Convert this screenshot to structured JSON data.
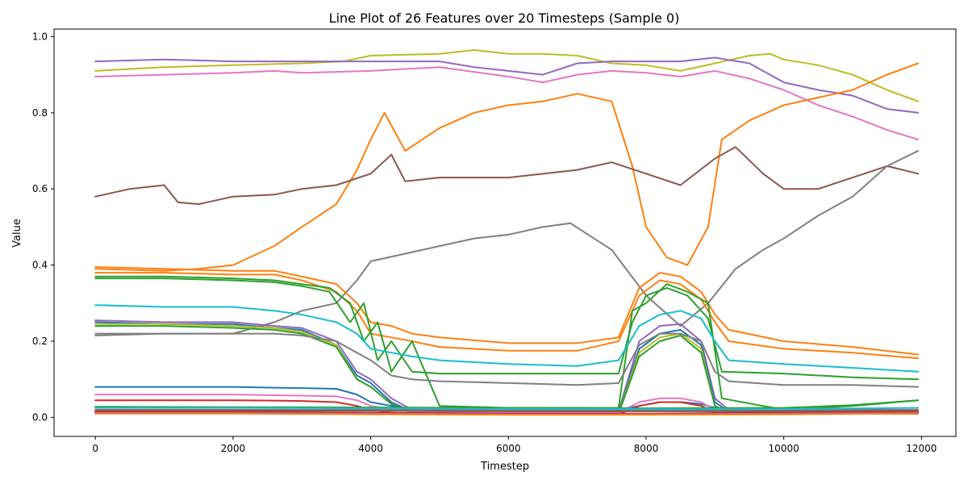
{
  "chart_data": {
    "type": "line",
    "title": "Line Plot of 26 Features over 20 Timesteps (Sample 0)",
    "xlabel": "Timestep",
    "ylabel": "Value",
    "xlim": [
      -600,
      12500
    ],
    "ylim": [
      -0.05,
      1.02
    ],
    "xticks": [
      0,
      2000,
      4000,
      6000,
      8000,
      10000,
      12000
    ],
    "xtick_labels": [
      "0",
      "2000",
      "4000",
      "6000",
      "8000",
      "10000",
      "12000"
    ],
    "yticks": [
      0.0,
      0.2,
      0.4,
      0.6,
      0.8,
      1.0
    ],
    "ytick_labels": [
      "0.0",
      "0.2",
      "0.4",
      "0.6",
      "0.8",
      "1.0"
    ],
    "grid": false,
    "legend": "none",
    "series": [
      {
        "color": "#bcbd22",
        "x": [
          0,
          1000,
          2000,
          3000,
          3600,
          4000,
          5000,
          5500,
          6000,
          6500,
          7000,
          7500,
          8000,
          8500,
          9000,
          9500,
          9800,
          10000,
          10500,
          11000,
          11500,
          11950
        ],
        "y": [
          0.91,
          0.92,
          0.925,
          0.93,
          0.935,
          0.95,
          0.955,
          0.965,
          0.955,
          0.955,
          0.95,
          0.93,
          0.925,
          0.91,
          0.93,
          0.95,
          0.955,
          0.94,
          0.925,
          0.9,
          0.86,
          0.83
        ]
      },
      {
        "color": "#9467bd",
        "x": [
          0,
          1000,
          2000,
          3000,
          4000,
          5000,
          5500,
          6000,
          6500,
          7000,
          7500,
          8000,
          8500,
          9000,
          9500,
          10000,
          10500,
          11000,
          11500,
          11950
        ],
        "y": [
          0.935,
          0.94,
          0.935,
          0.935,
          0.935,
          0.935,
          0.92,
          0.91,
          0.9,
          0.93,
          0.935,
          0.935,
          0.935,
          0.945,
          0.93,
          0.88,
          0.86,
          0.845,
          0.81,
          0.8
        ]
      },
      {
        "color": "#e377c2",
        "x": [
          0,
          1000,
          2000,
          2600,
          3000,
          4000,
          5000,
          6000,
          6500,
          7000,
          7500,
          8000,
          8500,
          9000,
          9500,
          10000,
          10500,
          11000,
          11500,
          11950
        ],
        "y": [
          0.895,
          0.9,
          0.905,
          0.91,
          0.905,
          0.91,
          0.92,
          0.895,
          0.88,
          0.9,
          0.91,
          0.905,
          0.895,
          0.91,
          0.89,
          0.86,
          0.82,
          0.79,
          0.755,
          0.73
        ]
      },
      {
        "color": "#ff7f0e",
        "x": [
          0,
          1000,
          1500,
          2000,
          2600,
          3000,
          3500,
          3800,
          4000,
          4200,
          4500,
          5000,
          5500,
          6000,
          6500,
          7000,
          7500,
          7800,
          8000,
          8300,
          8600,
          8900,
          9100,
          9500,
          10000,
          10500,
          11000,
          11500,
          11950
        ],
        "y": [
          0.39,
          0.385,
          0.39,
          0.4,
          0.45,
          0.5,
          0.56,
          0.65,
          0.73,
          0.8,
          0.7,
          0.76,
          0.8,
          0.82,
          0.83,
          0.85,
          0.83,
          0.66,
          0.5,
          0.42,
          0.4,
          0.5,
          0.73,
          0.78,
          0.82,
          0.84,
          0.86,
          0.9,
          0.93
        ]
      },
      {
        "color": "#8c564b",
        "x": [
          0,
          500,
          1000,
          1200,
          1500,
          2000,
          2600,
          3000,
          3500,
          4000,
          4300,
          4500,
          5000,
          6000,
          7000,
          7500,
          8000,
          8500,
          9000,
          9300,
          9700,
          10000,
          10500,
          11000,
          11500,
          11950
        ],
        "y": [
          0.58,
          0.6,
          0.61,
          0.565,
          0.56,
          0.58,
          0.585,
          0.6,
          0.61,
          0.64,
          0.69,
          0.62,
          0.63,
          0.63,
          0.65,
          0.67,
          0.64,
          0.61,
          0.68,
          0.71,
          0.64,
          0.6,
          0.6,
          0.63,
          0.66,
          0.64
        ]
      },
      {
        "color": "#7f7f7f",
        "x": [
          0,
          1000,
          2000,
          2600,
          3000,
          3500,
          3800,
          4000,
          4500,
          5000,
          5500,
          6000,
          6500,
          6900,
          7500,
          8000,
          8500,
          8900,
          9300,
          9700,
          10000,
          10500,
          11000,
          11500,
          11950
        ],
        "y": [
          0.22,
          0.22,
          0.22,
          0.25,
          0.28,
          0.3,
          0.36,
          0.41,
          0.43,
          0.45,
          0.47,
          0.48,
          0.5,
          0.51,
          0.44,
          0.32,
          0.24,
          0.3,
          0.39,
          0.44,
          0.47,
          0.53,
          0.58,
          0.66,
          0.7
        ]
      },
      {
        "color": "#ff7f0e",
        "x": [
          0,
          1000,
          2000,
          2600,
          3000,
          3500,
          3800,
          4000,
          4300,
          4600,
          5000,
          6000,
          7000,
          7600,
          7900,
          8200,
          8500,
          8800,
          9000,
          9200,
          10000,
          11000,
          11950
        ],
        "y": [
          0.395,
          0.39,
          0.385,
          0.385,
          0.37,
          0.35,
          0.3,
          0.25,
          0.24,
          0.22,
          0.21,
          0.195,
          0.195,
          0.21,
          0.34,
          0.38,
          0.37,
          0.33,
          0.27,
          0.23,
          0.2,
          0.185,
          0.165
        ]
      },
      {
        "color": "#ff7f0e",
        "x": [
          0,
          1000,
          2000,
          2600,
          3000,
          3500,
          3800,
          4000,
          4300,
          4600,
          5000,
          6000,
          7000,
          7600,
          7900,
          8200,
          8500,
          8800,
          9000,
          9200,
          10000,
          11000,
          11950
        ],
        "y": [
          0.38,
          0.38,
          0.375,
          0.375,
          0.36,
          0.33,
          0.28,
          0.22,
          0.21,
          0.2,
          0.185,
          0.175,
          0.175,
          0.2,
          0.32,
          0.36,
          0.35,
          0.31,
          0.25,
          0.2,
          0.18,
          0.17,
          0.155
        ]
      },
      {
        "color": "#2ca02c",
        "x": [
          0,
          1000,
          2000,
          2600,
          3000,
          3400,
          3700,
          3900,
          4100,
          4300,
          4600,
          5000,
          6000,
          7000,
          7600,
          7800,
          8000,
          8300,
          8600,
          8900,
          9100,
          10000,
          11000,
          11950
        ],
        "y": [
          0.37,
          0.37,
          0.365,
          0.36,
          0.35,
          0.34,
          0.3,
          0.2,
          0.25,
          0.12,
          0.2,
          0.03,
          0.025,
          0.025,
          0.025,
          0.28,
          0.3,
          0.35,
          0.33,
          0.3,
          0.05,
          0.02,
          0.03,
          0.045
        ]
      },
      {
        "color": "#2ca02c",
        "x": [
          0,
          1000,
          2000,
          2600,
          3000,
          3400,
          3700,
          3900,
          4100,
          4300,
          4600,
          5000,
          6000,
          7000,
          7600,
          7800,
          8000,
          8300,
          8600,
          8900,
          9100,
          10000,
          11000,
          11950
        ],
        "y": [
          0.365,
          0.365,
          0.36,
          0.355,
          0.345,
          0.33,
          0.25,
          0.3,
          0.15,
          0.2,
          0.12,
          0.115,
          0.115,
          0.115,
          0.115,
          0.25,
          0.32,
          0.34,
          0.32,
          0.26,
          0.12,
          0.115,
          0.105,
          0.1
        ]
      },
      {
        "color": "#17becf",
        "x": [
          0,
          1000,
          2000,
          2600,
          3000,
          3500,
          3800,
          4000,
          4300,
          4600,
          5000,
          6000,
          7000,
          7600,
          7900,
          8200,
          8500,
          8800,
          9000,
          9200,
          10000,
          11000,
          11950
        ],
        "y": [
          0.295,
          0.29,
          0.29,
          0.28,
          0.27,
          0.25,
          0.22,
          0.18,
          0.17,
          0.16,
          0.15,
          0.14,
          0.135,
          0.15,
          0.24,
          0.27,
          0.28,
          0.26,
          0.2,
          0.15,
          0.14,
          0.13,
          0.12
        ]
      },
      {
        "color": "#9467bd",
        "x": [
          0,
          1000,
          2000,
          2600,
          3000,
          3500,
          3800,
          4000,
          4300,
          4600,
          5000,
          6000,
          7000,
          7600,
          7900,
          8200,
          8500,
          8800,
          9000,
          9200,
          10000,
          11000,
          11950
        ],
        "y": [
          0.255,
          0.25,
          0.25,
          0.24,
          0.235,
          0.2,
          0.12,
          0.1,
          0.05,
          0.02,
          0.015,
          0.01,
          0.01,
          0.015,
          0.2,
          0.24,
          0.245,
          0.2,
          0.05,
          0.02,
          0.015,
          0.012,
          0.012
        ]
      },
      {
        "color": "#1f77b4",
        "x": [
          0,
          1000,
          2000,
          2600,
          3000,
          3500,
          3800,
          4000,
          4300,
          4600,
          5000,
          6000,
          7000,
          7600,
          7900,
          8200,
          8500,
          8800,
          9000,
          9200,
          10000,
          11000,
          11950
        ],
        "y": [
          0.25,
          0.245,
          0.245,
          0.235,
          0.23,
          0.19,
          0.11,
          0.09,
          0.04,
          0.015,
          0.012,
          0.01,
          0.01,
          0.012,
          0.18,
          0.22,
          0.23,
          0.19,
          0.04,
          0.015,
          0.012,
          0.01,
          0.01
        ]
      },
      {
        "color": "#bcbd22",
        "x": [
          0,
          1000,
          2000,
          2600,
          3000,
          3500,
          3800,
          4000,
          4300,
          4600,
          5000,
          6000,
          7000,
          7600,
          7900,
          8200,
          8500,
          8800,
          9000,
          9200,
          10000,
          11000,
          11950
        ],
        "y": [
          0.245,
          0.245,
          0.24,
          0.235,
          0.225,
          0.19,
          0.1,
          0.08,
          0.035,
          0.012,
          0.01,
          0.008,
          0.008,
          0.01,
          0.17,
          0.21,
          0.22,
          0.18,
          0.03,
          0.012,
          0.01,
          0.01,
          0.01
        ]
      },
      {
        "color": "#2ca02c",
        "x": [
          0,
          1000,
          2000,
          2600,
          3000,
          3500,
          3800,
          4000,
          4300,
          4600,
          5000,
          6000,
          7000,
          7600,
          7900,
          8200,
          8500,
          8800,
          9000,
          9200,
          10000,
          11000,
          11950
        ],
        "y": [
          0.24,
          0.24,
          0.235,
          0.23,
          0.22,
          0.185,
          0.1,
          0.08,
          0.035,
          0.012,
          0.01,
          0.008,
          0.008,
          0.01,
          0.16,
          0.2,
          0.215,
          0.17,
          0.03,
          0.012,
          0.01,
          0.01,
          0.01
        ]
      },
      {
        "color": "#7f7f7f",
        "x": [
          0,
          1000,
          2000,
          2600,
          3000,
          3500,
          3800,
          4000,
          4300,
          4600,
          5000,
          6000,
          7000,
          7600,
          7900,
          8200,
          8500,
          8800,
          9000,
          9200,
          10000,
          11000,
          11950
        ],
        "y": [
          0.215,
          0.22,
          0.22,
          0.22,
          0.215,
          0.2,
          0.17,
          0.15,
          0.11,
          0.1,
          0.095,
          0.09,
          0.085,
          0.09,
          0.19,
          0.22,
          0.22,
          0.2,
          0.12,
          0.095,
          0.085,
          0.085,
          0.08
        ]
      },
      {
        "color": "#1f77b4",
        "x": [
          0,
          1000,
          2000,
          2600,
          3000,
          3500,
          3800,
          4000,
          4300,
          4600,
          5000,
          6000,
          7000,
          7600,
          7900,
          8200,
          8500,
          8800,
          9000,
          9200,
          10000,
          11000,
          11950
        ],
        "y": [
          0.08,
          0.08,
          0.08,
          0.078,
          0.077,
          0.075,
          0.06,
          0.04,
          0.03,
          0.02,
          0.02,
          0.02,
          0.02,
          0.02,
          0.03,
          0.04,
          0.04,
          0.035,
          0.025,
          0.02,
          0.02,
          0.02,
          0.02
        ]
      },
      {
        "color": "#e377c2",
        "x": [
          0,
          1000,
          2000,
          2600,
          3000,
          3500,
          3800,
          4000,
          4300,
          4600,
          5000,
          6000,
          7000,
          7600,
          7900,
          8200,
          8500,
          8800,
          9000,
          9200,
          10000,
          11000,
          11950
        ],
        "y": [
          0.06,
          0.06,
          0.06,
          0.058,
          0.057,
          0.055,
          0.045,
          0.03,
          0.02,
          0.015,
          0.012,
          0.012,
          0.012,
          0.012,
          0.04,
          0.05,
          0.05,
          0.04,
          0.02,
          0.012,
          0.012,
          0.012,
          0.012
        ]
      },
      {
        "color": "#d62728",
        "x": [
          0,
          1000,
          2000,
          2600,
          3000,
          3500,
          3800,
          4000,
          4300,
          4600,
          5000,
          6000,
          7000,
          7600,
          7900,
          8200,
          8500,
          8800,
          9000,
          9200,
          10000,
          11000,
          11950
        ],
        "y": [
          0.045,
          0.045,
          0.045,
          0.044,
          0.043,
          0.04,
          0.03,
          0.02,
          0.012,
          0.01,
          0.008,
          0.008,
          0.008,
          0.008,
          0.03,
          0.04,
          0.04,
          0.03,
          0.012,
          0.01,
          0.01,
          0.01,
          0.01
        ]
      },
      {
        "color": "#2ca02c",
        "x": [
          0,
          2000,
          4000,
          6000,
          8000,
          10000,
          11000,
          11950
        ],
        "y": [
          0.028,
          0.027,
          0.026,
          0.025,
          0.024,
          0.025,
          0.032,
          0.045
        ]
      },
      {
        "color": "#17becf",
        "x": [
          0,
          2000,
          4000,
          6000,
          8000,
          10000,
          11950
        ],
        "y": [
          0.025,
          0.025,
          0.024,
          0.022,
          0.022,
          0.022,
          0.025
        ]
      },
      {
        "color": "#7f7f7f",
        "x": [
          0,
          2000,
          4000,
          6000,
          8000,
          10000,
          11950
        ],
        "y": [
          0.02,
          0.02,
          0.02,
          0.018,
          0.018,
          0.018,
          0.02
        ]
      },
      {
        "color": "#8c564b",
        "x": [
          0,
          2000,
          4000,
          6000,
          8000,
          10000,
          11950
        ],
        "y": [
          0.018,
          0.018,
          0.017,
          0.016,
          0.016,
          0.016,
          0.017
        ]
      },
      {
        "color": "#d62728",
        "x": [
          0,
          2000,
          4000,
          6000,
          8000,
          10000,
          11950
        ],
        "y": [
          0.015,
          0.015,
          0.012,
          0.01,
          0.01,
          0.012,
          0.015
        ]
      },
      {
        "color": "#9467bd",
        "x": [
          0,
          2000,
          4000,
          6000,
          8000,
          10000,
          11950
        ],
        "y": [
          0.012,
          0.012,
          0.01,
          0.008,
          0.008,
          0.01,
          0.012
        ]
      },
      {
        "color": "#ff7f0e",
        "x": [
          0,
          2000,
          4000,
          6000,
          8000,
          10000,
          11950
        ],
        "y": [
          0.01,
          0.01,
          0.008,
          0.007,
          0.007,
          0.008,
          0.01
        ]
      }
    ]
  }
}
